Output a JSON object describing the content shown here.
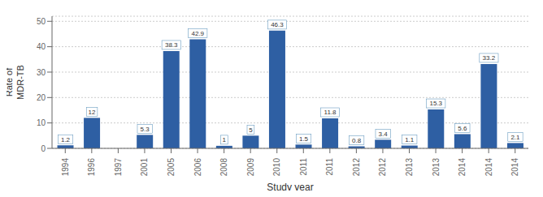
{
  "chart_data": {
    "type": "bar",
    "categories": [
      "1994",
      "1996",
      "1997",
      "2001",
      "2005",
      "2006",
      "2008",
      "2009",
      "2010",
      "2011",
      "2011",
      "2012",
      "2012",
      "2013",
      "2013",
      "2014",
      "2014",
      "2014"
    ],
    "values": [
      1.2,
      12,
      0,
      5.3,
      38.3,
      42.9,
      1,
      5,
      46.3,
      1.5,
      11.8,
      0.8,
      3.4,
      1.1,
      15.3,
      5.6,
      33.2,
      2.1
    ],
    "color": "#2e5fa3",
    "xlabel": "Study year",
    "ylabel": "Rate of\nMDR-TB",
    "ylim": [
      0,
      52
    ],
    "yticks": [
      0,
      10,
      20,
      30,
      40,
      50
    ],
    "grid": true,
    "data_labels": true
  }
}
